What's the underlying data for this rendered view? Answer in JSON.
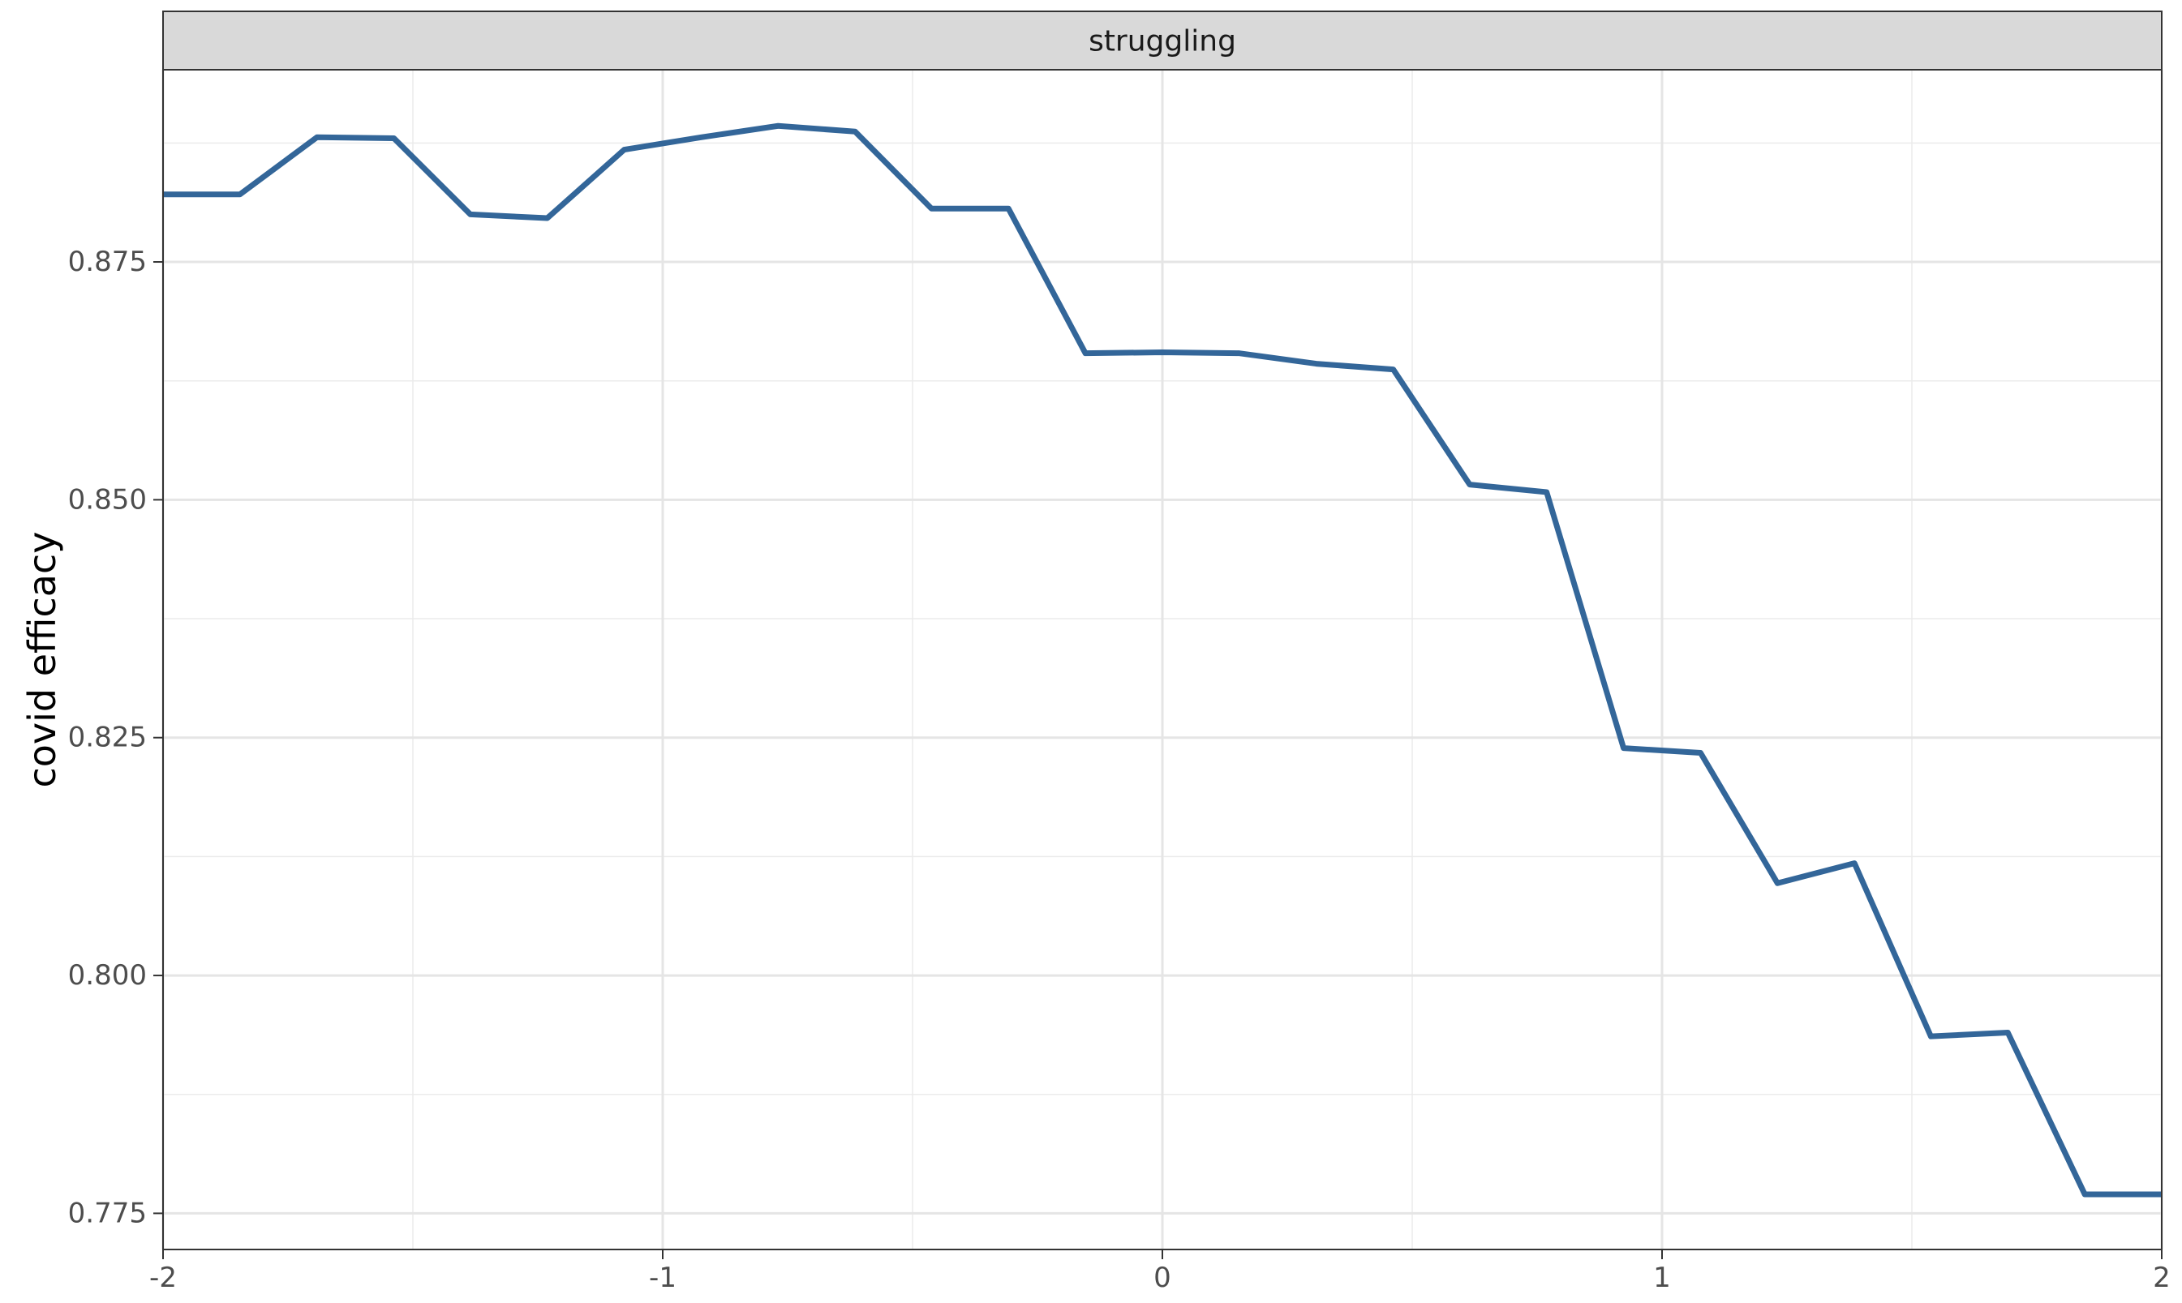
{
  "chart_data": {
    "type": "line",
    "title": "",
    "facet_label": "struggling",
    "xlabel": "",
    "ylabel": "covid efficacy",
    "xlim": [
      -2,
      2
    ],
    "ylim": [
      0.7712,
      0.8952
    ],
    "x_ticks": [
      -2,
      -1,
      0,
      1,
      2
    ],
    "x_tick_labels": [
      "-2",
      "-1",
      "0",
      "1",
      "2"
    ],
    "y_ticks": [
      0.775,
      0.8,
      0.825,
      0.85,
      0.875
    ],
    "y_tick_labels": [
      "0.775",
      "0.800",
      "0.825",
      "0.850",
      "0.875"
    ],
    "grid": true,
    "legend": "none",
    "line_color": "#336699",
    "strip_color": "#d9d9d9",
    "series": [
      {
        "x": [
          -2.0,
          -1.846,
          -1.692,
          -1.538,
          -1.385,
          -1.231,
          -1.077,
          -0.923,
          -0.769,
          -0.615,
          -0.462,
          -0.308,
          -0.154,
          0.0,
          0.154,
          0.308,
          0.462,
          0.615,
          0.769,
          0.923,
          1.077,
          1.231,
          1.385,
          1.538,
          1.692,
          1.846,
          2.0
        ],
        "y": [
          0.8821,
          0.8821,
          0.8881,
          0.888,
          0.88,
          0.8796,
          0.8868,
          0.8881,
          0.8893,
          0.8887,
          0.8806,
          0.8806,
          0.8654,
          0.8655,
          0.8654,
          0.8643,
          0.8637,
          0.8516,
          0.8508,
          0.8239,
          0.8234,
          0.8097,
          0.8118,
          0.7936,
          0.794,
          0.777,
          0.777
        ]
      }
    ]
  }
}
